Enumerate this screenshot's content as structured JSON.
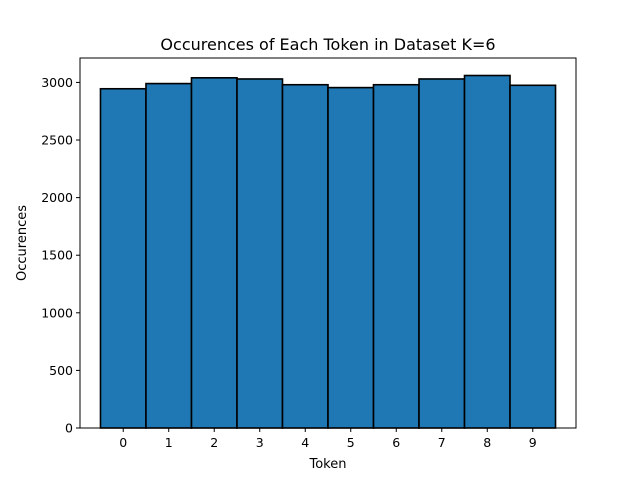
{
  "chart_data": {
    "type": "bar",
    "title": "Occurences of Each Token in Dataset K=6",
    "xlabel": "Token",
    "ylabel": "Occurences",
    "categories": [
      "0",
      "1",
      "2",
      "3",
      "4",
      "5",
      "6",
      "7",
      "8",
      "9"
    ],
    "values": [
      2945,
      2990,
      3040,
      3030,
      2980,
      2955,
      2980,
      3030,
      3060,
      2975
    ],
    "ylim": [
      0,
      3212
    ],
    "yticks": [
      "0",
      "500",
      "1000",
      "1500",
      "2000",
      "2500",
      "3000"
    ],
    "grid": false,
    "bar_color": "#1f77b4",
    "edge_color": "#000000"
  }
}
